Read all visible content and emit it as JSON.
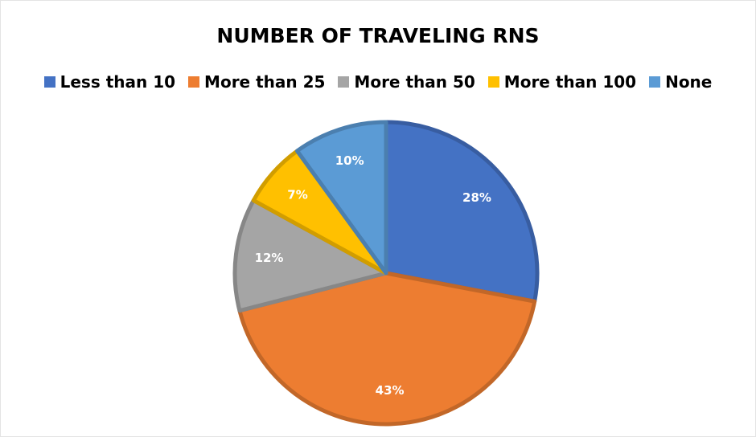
{
  "chart_data": {
    "type": "pie",
    "title": "NUMBER OF TRAVELING RNS",
    "categories": [
      "Less than 10",
      "More than 25",
      "More than 50",
      "More than 100",
      "None"
    ],
    "values": [
      28,
      43,
      12,
      7,
      10
    ],
    "value_labels": [
      "28%",
      "43%",
      "12%",
      "7%",
      "10%"
    ],
    "colors": [
      "#4472c4",
      "#ed7d31",
      "#a5a5a5",
      "#ffc000",
      "#5b9bd5"
    ],
    "legend": "top"
  }
}
